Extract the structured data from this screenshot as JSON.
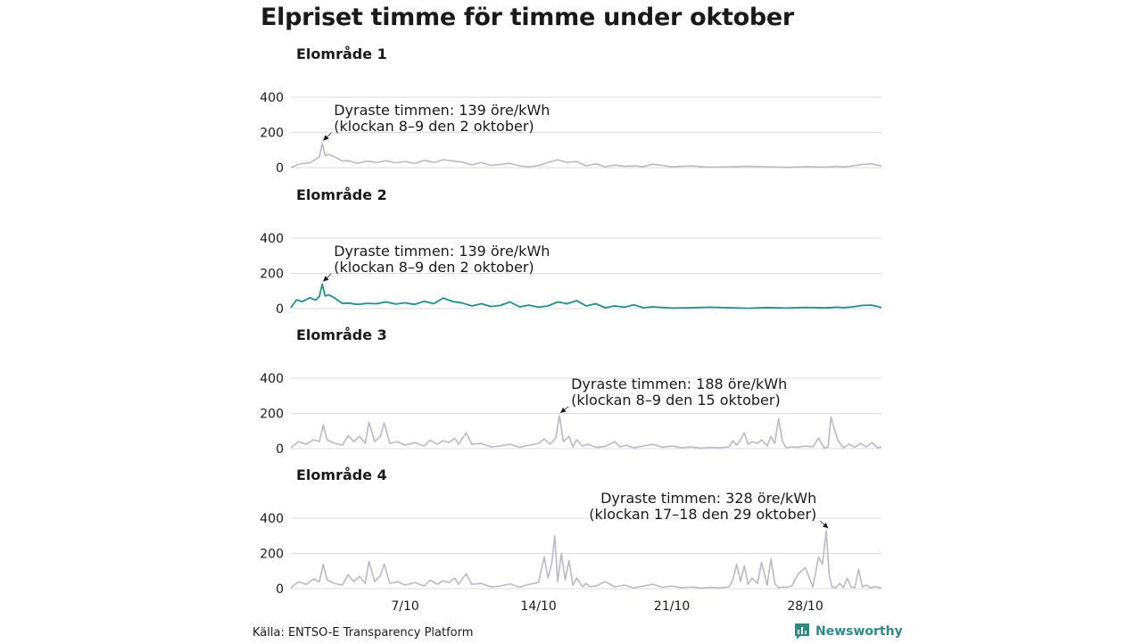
{
  "title": "Elpriset timme för timme under oktober",
  "source": "Källa: ENTSO-E Transparency Platform",
  "brand": {
    "name": "Newsworthy",
    "icon": "newsworthy-logo-icon",
    "color": "#2a8c86"
  },
  "colors": {
    "highlight": "#1a9484",
    "muted": "#b9b9c8",
    "grid": "#dcdcdc",
    "text": "#1a1a1a"
  },
  "chart_data": {
    "type": "line",
    "title": "Elpriset timme för timme under oktober",
    "ylabel": "",
    "unit": "öre/kWh",
    "xlim": [
      1,
      32
    ],
    "ylim": [
      0,
      400
    ],
    "yticks": [
      0,
      200,
      400
    ],
    "xticks": [
      {
        "x": 7,
        "label": "7/10"
      },
      {
        "x": 14,
        "label": "14/10"
      },
      {
        "x": 21,
        "label": "21/10"
      },
      {
        "x": 28,
        "label": "28/10"
      }
    ],
    "grid": true,
    "highlighted_panel": "Elområde 2",
    "panels": [
      {
        "name": "Elområde 1",
        "x": [
          1,
          1.5,
          2,
          2.3,
          2.5,
          2.65,
          2.8,
          3,
          3.3,
          3.7,
          4,
          4.5,
          5,
          5.5,
          6,
          6.5,
          7,
          7.5,
          8,
          8.5,
          9,
          9.5,
          10,
          10.5,
          11,
          11.5,
          12,
          12.5,
          13,
          13.5,
          14,
          14.5,
          15,
          15.5,
          16,
          16.5,
          17,
          17.5,
          18,
          18.5,
          19,
          19.5,
          20,
          21,
          22,
          23,
          24,
          25,
          26,
          27,
          28,
          29,
          29.7,
          30,
          30.5,
          31,
          31.5,
          32
        ],
        "values": [
          2,
          22,
          28,
          48,
          62,
          139,
          70,
          75,
          62,
          38,
          40,
          25,
          38,
          30,
          40,
          28,
          35,
          24,
          42,
          30,
          45,
          38,
          32,
          15,
          30,
          12,
          18,
          25,
          10,
          5,
          12,
          30,
          45,
          30,
          35,
          10,
          22,
          5,
          15,
          8,
          10,
          6,
          20,
          5,
          10,
          3,
          5,
          8,
          5,
          2,
          6,
          3,
          7,
          4,
          10,
          18,
          22,
          8
        ],
        "annotation": {
          "x": 2.65,
          "y": 139,
          "text": [
            "Dyraste timmen: 139 öre/kWh",
            "(klockan 8–9 den 2 oktober)"
          ]
        }
      },
      {
        "name": "Elområde 2",
        "x": [
          1,
          1.3,
          1.6,
          2,
          2.3,
          2.5,
          2.65,
          2.8,
          3,
          3.3,
          3.7,
          4,
          4.5,
          5,
          5.5,
          6,
          6.5,
          7,
          7.5,
          8,
          8.5,
          9,
          9.5,
          10,
          10.5,
          11,
          11.5,
          12,
          12.5,
          13,
          13.5,
          14,
          14.5,
          15,
          15.5,
          16,
          16.5,
          17,
          17.5,
          18,
          18.5,
          19,
          19.5,
          20,
          21,
          22,
          23,
          24,
          25,
          26,
          27,
          28,
          29,
          29.7,
          30,
          30.5,
          31,
          31.5,
          32
        ],
        "values": [
          5,
          50,
          40,
          62,
          48,
          70,
          139,
          72,
          78,
          60,
          30,
          32,
          24,
          30,
          28,
          38,
          26,
          33,
          24,
          42,
          28,
          60,
          40,
          32,
          15,
          28,
          12,
          18,
          38,
          10,
          20,
          8,
          15,
          38,
          28,
          45,
          15,
          28,
          5,
          15,
          8,
          22,
          5,
          10,
          3,
          5,
          8,
          5,
          2,
          6,
          3,
          7,
          4,
          8,
          5,
          10,
          18,
          20,
          6
        ],
        "annotation": {
          "x": 2.65,
          "y": 139,
          "text": [
            "Dyraste timmen: 139 öre/kWh",
            "(klockan 8–9 den 2 oktober)"
          ]
        }
      },
      {
        "name": "Elområde 3",
        "x": [
          1,
          1.4,
          1.8,
          2.2,
          2.5,
          2.7,
          2.9,
          3.3,
          3.7,
          4,
          4.3,
          4.6,
          4.9,
          5.1,
          5.4,
          5.7,
          5.9,
          6.2,
          6.6,
          7,
          7.5,
          8,
          8.3,
          8.7,
          9,
          9.3,
          9.6,
          9.8,
          10.2,
          10.5,
          11,
          11.5,
          12,
          12.5,
          13,
          13.5,
          14,
          14.3,
          14.6,
          14.9,
          15.1,
          15.3,
          15.6,
          15.8,
          16,
          16.3,
          16.6,
          17,
          17.5,
          18,
          18.3,
          18.6,
          19,
          19.5,
          20,
          20.5,
          21,
          21.5,
          22,
          22.5,
          23,
          23.5,
          24,
          24.2,
          24.4,
          24.6,
          24.8,
          25,
          25.2,
          25.5,
          25.7,
          26,
          26.2,
          26.4,
          26.6,
          26.8,
          27,
          27.3,
          27.6,
          28,
          28.4,
          28.7,
          29,
          29.2,
          29.35,
          29.5,
          29.7,
          30,
          30.3,
          30.6,
          30.9,
          31.2,
          31.5,
          31.8,
          32
        ],
        "values": [
          5,
          40,
          25,
          50,
          40,
          135,
          50,
          30,
          20,
          75,
          40,
          70,
          30,
          150,
          40,
          70,
          145,
          30,
          40,
          20,
          35,
          15,
          48,
          25,
          45,
          35,
          60,
          25,
          90,
          25,
          30,
          10,
          15,
          25,
          8,
          20,
          30,
          55,
          25,
          60,
          188,
          40,
          70,
          10,
          50,
          15,
          25,
          8,
          12,
          40,
          10,
          20,
          5,
          15,
          25,
          8,
          15,
          5,
          10,
          3,
          8,
          5,
          10,
          45,
          20,
          50,
          90,
          25,
          40,
          30,
          50,
          15,
          70,
          30,
          170,
          40,
          5,
          10,
          8,
          15,
          10,
          60,
          3,
          10,
          180,
          120,
          50,
          5,
          25,
          8,
          30,
          10,
          35,
          5,
          10
        ],
        "annotation": {
          "x": 15.1,
          "y": 188,
          "text": [
            "Dyraste timmen: 188 öre/kWh",
            "(klockan 8–9 den 15 oktober)"
          ]
        }
      },
      {
        "name": "Elområde 4",
        "x": [
          1,
          1.4,
          1.8,
          2.2,
          2.5,
          2.7,
          2.9,
          3.3,
          3.7,
          4,
          4.3,
          4.6,
          4.9,
          5.1,
          5.4,
          5.7,
          5.9,
          6.2,
          6.6,
          7,
          7.5,
          8,
          8.3,
          8.7,
          9,
          9.3,
          9.6,
          9.8,
          10.2,
          10.5,
          11,
          11.5,
          12,
          12.5,
          13,
          13.5,
          14,
          14.3,
          14.5,
          14.7,
          14.85,
          15,
          15.2,
          15.4,
          15.6,
          15.8,
          16,
          16.3,
          16.5,
          16.7,
          17,
          17.5,
          18,
          18.5,
          19,
          19.5,
          20,
          20.5,
          21,
          21.5,
          22,
          22.5,
          23,
          23.5,
          24,
          24.2,
          24.4,
          24.6,
          24.8,
          25,
          25.2,
          25.5,
          25.7,
          26,
          26.2,
          26.4,
          26.6,
          26.8,
          27,
          27.3,
          27.6,
          28,
          28.4,
          28.7,
          28.9,
          29.1,
          29.25,
          29.4,
          29.6,
          29.8,
          30,
          30.2,
          30.4,
          30.6,
          30.8,
          31,
          31.2,
          31.4,
          31.7,
          32
        ],
        "values": [
          5,
          40,
          25,
          55,
          40,
          138,
          50,
          30,
          20,
          80,
          40,
          70,
          30,
          155,
          40,
          75,
          140,
          30,
          40,
          20,
          35,
          15,
          48,
          25,
          45,
          35,
          60,
          25,
          85,
          25,
          30,
          10,
          15,
          28,
          8,
          25,
          35,
          180,
          60,
          150,
          300,
          40,
          200,
          50,
          160,
          20,
          60,
          10,
          30,
          12,
          15,
          40,
          10,
          20,
          5,
          15,
          25,
          8,
          15,
          5,
          10,
          3,
          8,
          5,
          10,
          50,
          140,
          40,
          130,
          25,
          60,
          30,
          150,
          20,
          170,
          30,
          5,
          10,
          8,
          15,
          80,
          120,
          10,
          180,
          140,
          328,
          80,
          10,
          5,
          30,
          8,
          60,
          10,
          5,
          110,
          10,
          20,
          5,
          12,
          3
        ],
        "annotation": {
          "x": 29.25,
          "y": 328,
          "text": [
            "Dyraste timmen: 328 öre/kWh",
            "(klockan 17–18 den 29 oktober)"
          ]
        }
      }
    ]
  }
}
